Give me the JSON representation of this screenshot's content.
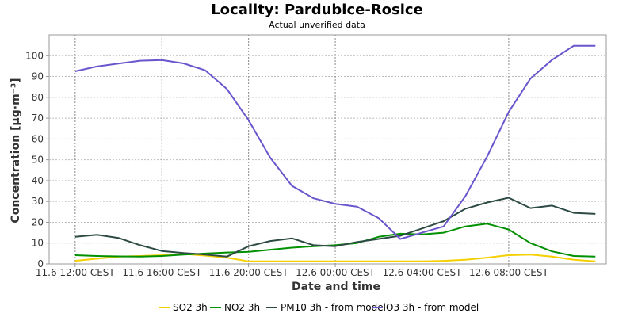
{
  "chart_data": {
    "type": "line",
    "title": "Locality: Pardubice-Rosice",
    "subtitle": "Actual unverified data",
    "xlabel": "Date and time",
    "ylabel": "Concentration [µg·m⁻³]",
    "ylim": [
      0,
      110
    ],
    "yticks": [
      0,
      10,
      20,
      30,
      40,
      50,
      60,
      70,
      80,
      90,
      100
    ],
    "x_hours": [
      0,
      1,
      2,
      3,
      4,
      5,
      6,
      7,
      8,
      9,
      10,
      11,
      12,
      13,
      14,
      15,
      16,
      17,
      18,
      19,
      20,
      21,
      22,
      23,
      24
    ],
    "x_range_hours": [
      -1.2,
      24.5
    ],
    "xticks": [
      {
        "hour": 0,
        "label": "11.6 12:00 CEST"
      },
      {
        "hour": 4,
        "label": "11.6 16:00 CEST"
      },
      {
        "hour": 8,
        "label": "11.6 20:00 CEST"
      },
      {
        "hour": 12,
        "label": "12.6 00:00 CEST"
      },
      {
        "hour": 16,
        "label": "12.6 04:00 CEST"
      },
      {
        "hour": 20,
        "label": "12.6 08:00 CEST"
      }
    ],
    "grid": true,
    "legend_position": "bottom",
    "series": [
      {
        "name": "SO2 3h",
        "color": "#f5d000",
        "values": [
          1.5,
          2.5,
          3.5,
          3.8,
          4.2,
          4.8,
          4.0,
          3.0,
          1.2,
          1.2,
          1.2,
          1.2,
          1.2,
          1.2,
          1.2,
          1.2,
          1.2,
          1.5,
          2.0,
          3.0,
          4.2,
          4.5,
          3.5,
          2.0,
          1.2
        ]
      },
      {
        "name": "NO2 3h",
        "color": "#009000",
        "values": [
          4.2,
          3.8,
          3.6,
          3.5,
          3.8,
          4.5,
          5.0,
          5.5,
          5.8,
          6.8,
          7.8,
          8.5,
          9.0,
          10.0,
          13.0,
          14.5,
          14.2,
          15.0,
          18.0,
          19.3,
          16.5,
          10.0,
          6.0,
          3.8,
          3.5
        ]
      },
      {
        "name": "PM10 3h - from model",
        "color": "#2d4a44",
        "values": [
          13.0,
          14.0,
          12.5,
          9.0,
          6.2,
          5.2,
          4.5,
          3.5,
          8.5,
          11.0,
          12.3,
          9.0,
          8.5,
          10.5,
          12.0,
          13.5,
          17.0,
          20.5,
          26.5,
          29.5,
          31.8,
          26.8,
          28.0,
          24.5,
          24.0
        ]
      },
      {
        "name": "O3 3h - from model",
        "color": "#6a55cc",
        "values": [
          92.5,
          94.8,
          96.2,
          97.6,
          97.9,
          96.3,
          93.0,
          84.0,
          69.0,
          51.0,
          37.5,
          31.5,
          28.8,
          27.5,
          22.0,
          12.0,
          15.0,
          18.0,
          32.5,
          51.5,
          73.0,
          89.0,
          98.0,
          104.8,
          104.8
        ]
      }
    ]
  }
}
